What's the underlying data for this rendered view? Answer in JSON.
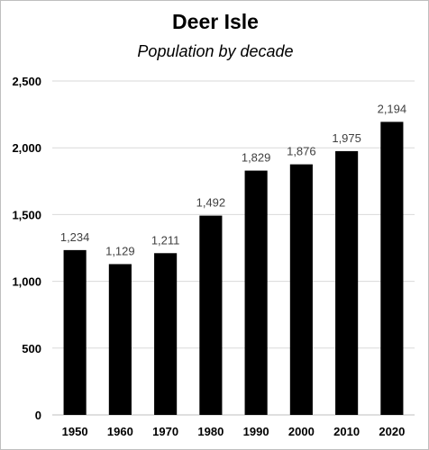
{
  "chart_data": {
    "type": "bar",
    "title": "Deer Isle",
    "subtitle": "Population by decade",
    "categories": [
      "1950",
      "1960",
      "1970",
      "1980",
      "1990",
      "2000",
      "2010",
      "2020"
    ],
    "values": [
      1234,
      1129,
      1211,
      1492,
      1829,
      1876,
      1975,
      2194
    ],
    "data_labels": [
      "1,234",
      "1,129",
      "1,211",
      "1,492",
      "1,829",
      "1,876",
      "1,975",
      "2,194"
    ],
    "ylim": [
      0,
      2500
    ],
    "yticks": [
      0,
      500,
      1000,
      1500,
      2000,
      2500
    ],
    "ytick_labels": [
      "0",
      "500",
      "1,000",
      "1,500",
      "2,000",
      "2,500"
    ],
    "xlabel": "",
    "ylabel": "",
    "grid": "horizontal",
    "legend": "none",
    "bar_color": "#000000",
    "grid_color": "#d9d9d9"
  }
}
